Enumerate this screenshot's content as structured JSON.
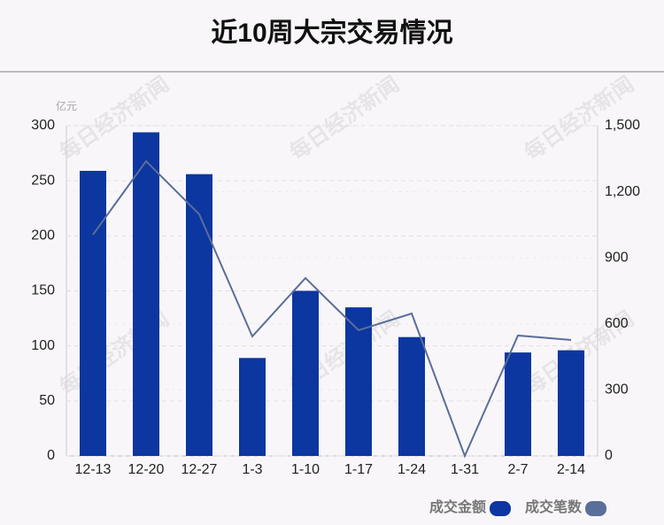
{
  "chart_data": {
    "type": "bar_line",
    "title": "近10周大宗交易情况",
    "y_unit": "亿元",
    "watermark": "每日经济新闻",
    "categories": [
      "12-13",
      "12-20",
      "12-27",
      "1-3",
      "1-10",
      "1-17",
      "1-24",
      "1-31",
      "2-7",
      "2-14"
    ],
    "series": [
      {
        "name": "成交金额",
        "type": "bar",
        "color": "#0c36a0",
        "values": [
          259,
          294,
          256,
          89,
          150,
          135,
          108,
          0,
          94,
          96
        ]
      },
      {
        "name": "成交笔数",
        "type": "line",
        "axis": "y2",
        "color": "#5a6e9a",
        "values": [
          1005,
          1339,
          1098,
          543,
          808,
          571,
          647,
          0,
          547,
          527
        ]
      }
    ],
    "ylim": [
      0,
      300
    ],
    "yticks": [
      0,
      50,
      100,
      150,
      200,
      250,
      300
    ],
    "y2lim": [
      0,
      1500
    ],
    "y2ticks": [
      0,
      300,
      600,
      900,
      {
        "value": 1200,
        "label": "1,200"
      },
      {
        "value": 1500,
        "label": "1,500"
      }
    ],
    "grid": true
  }
}
